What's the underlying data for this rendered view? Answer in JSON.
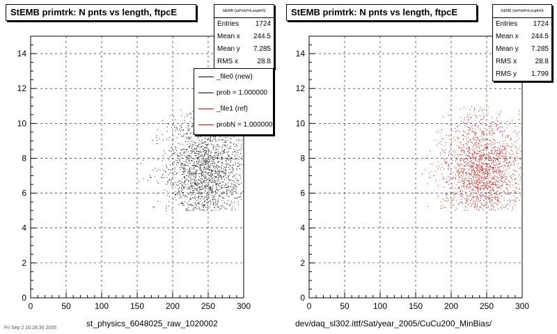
{
  "colors": {
    "new": "#000000",
    "ref": "#cc0000"
  },
  "corner_text": "Fri Sep 2 16:28:36 2005",
  "left": {
    "title": "StEMB primtrk: N pnts vs length, ftpcE",
    "stats": {
      "header": "StEMB QaPrtrkPrtLengthFE",
      "rows": [
        {
          "label": "Entries",
          "value": "1724"
        },
        {
          "label": "Mean x",
          "value": "244.5"
        },
        {
          "label": "Mean y",
          "value": "7.285"
        },
        {
          "label": "RMS x",
          "value": "28.8"
        }
      ]
    },
    "legend": [
      {
        "label": "_file0 (new)",
        "color": "#000000"
      },
      {
        "label": "prob = 1.000000",
        "color": "#000000"
      },
      {
        "label": "_file1 (ref)",
        "color": "#cc0000"
      },
      {
        "label": "probN = 1.000000",
        "color": "#cc0000"
      }
    ],
    "xtitle": "st_physics_6048025_raw_1020002"
  },
  "right": {
    "title": "StEMB primtrk: N pnts vs length, ftpcE",
    "stats": {
      "header": "StEMB QaPrtrkPrtLengthFE",
      "rows": [
        {
          "label": "Entries",
          "value": "1724"
        },
        {
          "label": "Mean x",
          "value": "244.5"
        },
        {
          "label": "Mean y",
          "value": "7.285"
        },
        {
          "label": "RMS x",
          "value": "28.8"
        },
        {
          "label": "RMS y",
          "value": "1.799"
        }
      ]
    },
    "xtitle": "dev/daq_sl302.ittf/Sat/year_2005/CuCu200_MinBias/"
  },
  "chart_data": [
    {
      "type": "scatter",
      "title": "StEMB primtrk: N pnts vs length, ftpcE",
      "xlabel": "st_physics_6048025_raw_1020002",
      "ylabel": "",
      "xlim": [
        0,
        300
      ],
      "ylim": [
        0,
        15
      ],
      "xticks": [
        "0",
        "50",
        "100",
        "150",
        "200",
        "250",
        "300"
      ],
      "yticks": [
        "0",
        "2",
        "4",
        "6",
        "8",
        "10",
        "12",
        "14"
      ],
      "grid": true,
      "series": [
        {
          "name": "_file0 (new)",
          "color": "#000000",
          "entries": 1724,
          "mean_x": 244.5,
          "mean_y": 7.285,
          "rms_x": 28.8,
          "rms_y": 1.799,
          "x_range": [
            140,
            300
          ],
          "y_range": [
            5,
            11
          ]
        }
      ]
    },
    {
      "type": "scatter",
      "title": "StEMB primtrk: N pnts vs length, ftpcE",
      "xlabel": "dev/daq_sl302.ittf/Sat/year_2005/CuCu200_MinBias/",
      "ylabel": "",
      "xlim": [
        0,
        300
      ],
      "ylim": [
        0,
        15
      ],
      "xticks": [
        "0",
        "50",
        "100",
        "150",
        "200",
        "250",
        "300"
      ],
      "yticks": [
        "0",
        "2",
        "4",
        "6",
        "8",
        "10",
        "12",
        "14"
      ],
      "grid": true,
      "series": [
        {
          "name": "_file1 (ref)",
          "color": "#cc0000",
          "entries": 1724,
          "mean_x": 244.5,
          "mean_y": 7.285,
          "rms_x": 28.8,
          "rms_y": 1.799,
          "x_range": [
            140,
            300
          ],
          "y_range": [
            5,
            11
          ]
        }
      ]
    }
  ]
}
